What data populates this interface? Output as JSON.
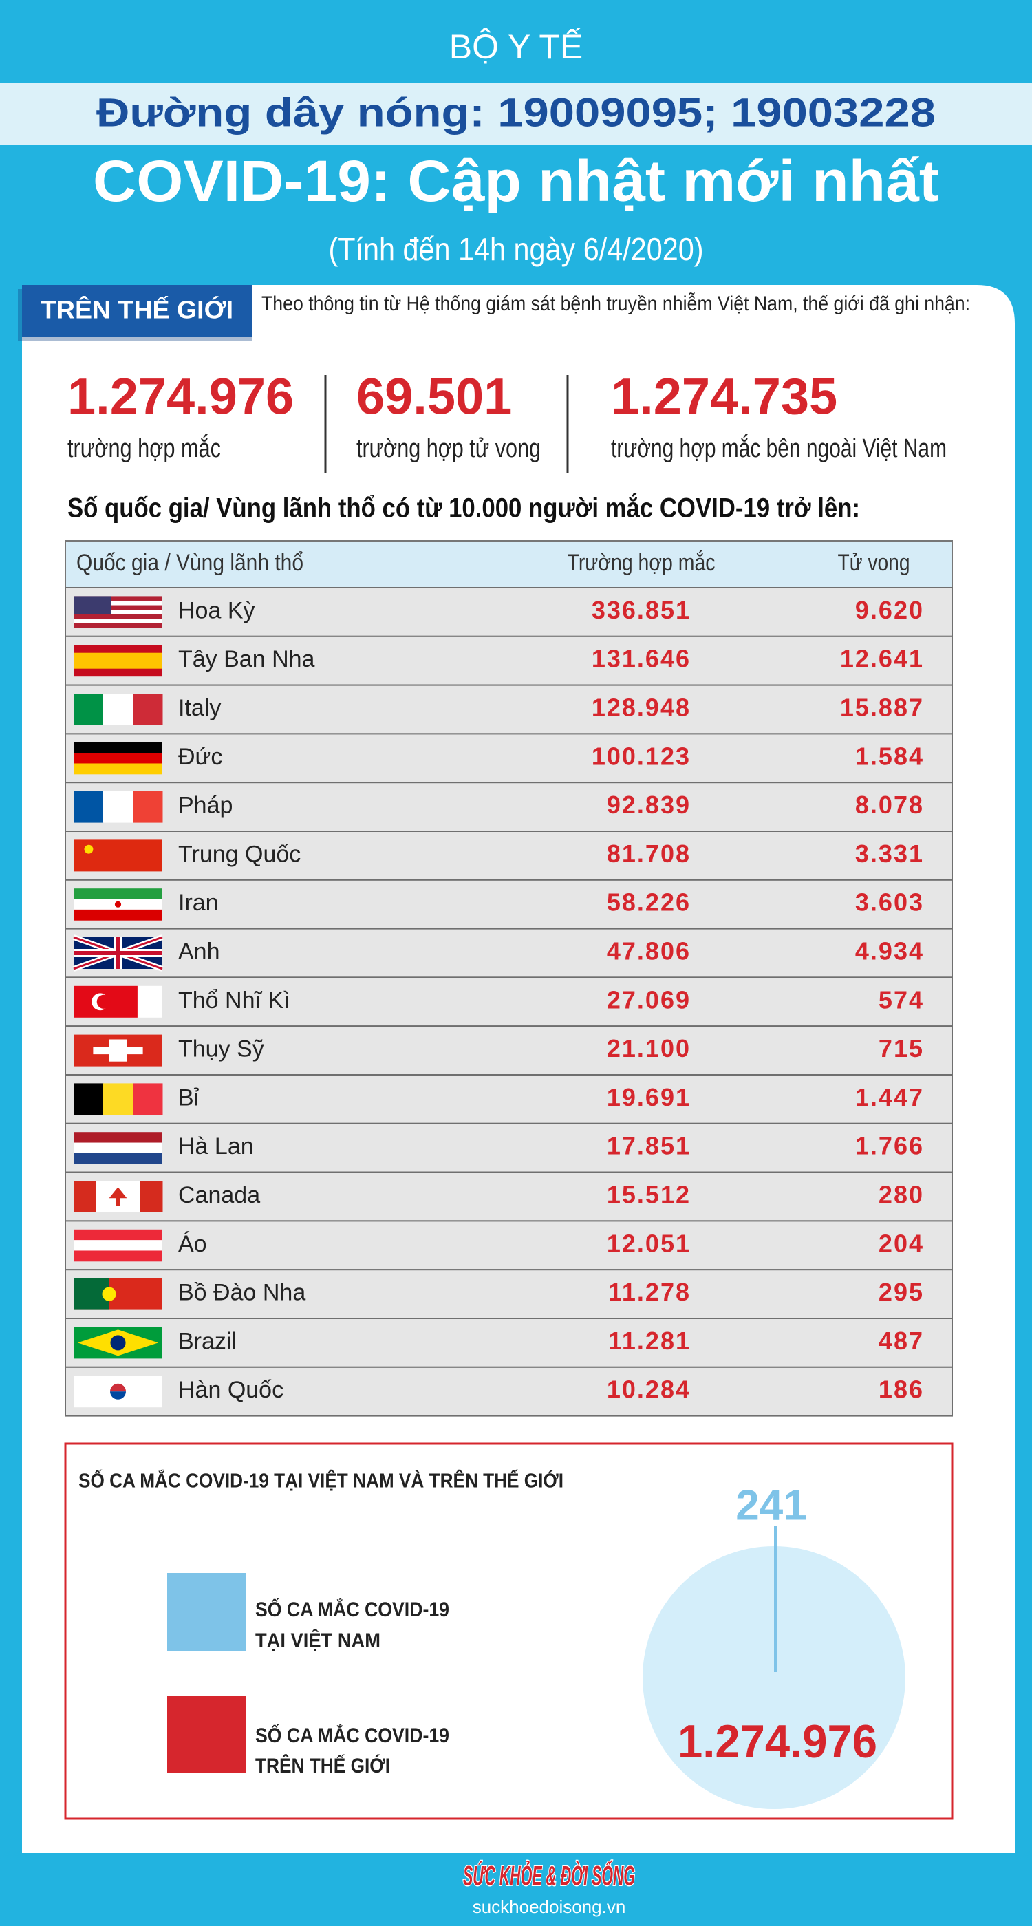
{
  "header": {
    "org": "BỘ Y TẾ",
    "hotline": "Đường dây nóng: 19009095; 19003228",
    "title": "COVID-19: Cập nhật mới nhất",
    "subtitle": "(Tính đến 14h ngày 6/4/2020)"
  },
  "world": {
    "tag": "TRÊN THẾ GIỚI",
    "intro": "Theo thông tin từ Hệ thống giám sát bệnh truyền nhiễm Việt Nam, thế giới đã ghi nhận:",
    "stats": [
      {
        "value": "1.274.976",
        "label": "trường hợp mắc"
      },
      {
        "value": "69.501",
        "label": "trường hợp tử vong"
      },
      {
        "value": "1.274.735",
        "label": "trường hợp  mắc bên ngoài Việt Nam"
      }
    ],
    "heading": "Số quốc gia/ Vùng lãnh thổ có từ 10.000 người  mắc COVID-19 trở lên:"
  },
  "table": {
    "columns": [
      "Quốc gia / Vùng lãnh thổ",
      "Trường hợp mắc",
      "Tử vong"
    ],
    "rows": [
      [
        "Hoa Kỳ",
        "336.851",
        "9.620"
      ],
      [
        "Tây Ban Nha",
        "131.646",
        "12.641"
      ],
      [
        "Italy",
        "128.948",
        "15.887"
      ],
      [
        "Đức",
        "100.123",
        "1.584"
      ],
      [
        "Pháp",
        "92.839",
        "8.078"
      ],
      [
        "Trung Quốc",
        "81.708",
        "3.331"
      ],
      [
        "Iran",
        "58.226",
        "3.603"
      ],
      [
        "Anh",
        "47.806",
        "4.934"
      ],
      [
        "Thổ Nhĩ Kì",
        "27.069",
        "574"
      ],
      [
        "Thụy Sỹ",
        "21.100",
        "715"
      ],
      [
        "Bỉ",
        "19.691",
        "1.447"
      ],
      [
        "Hà Lan",
        "17.851",
        "1.766"
      ],
      [
        "Canada",
        "15.512",
        "280"
      ],
      [
        "Áo",
        "12.051",
        "204"
      ],
      [
        "Bồ Đào Nha",
        "11.278",
        "295"
      ],
      [
        "Brazil",
        "11.281",
        "487"
      ],
      [
        "Hàn Quốc",
        "10.284",
        "186"
      ]
    ]
  },
  "comparison": {
    "title": "SỐ CA MẮC COVID-19 TẠI VIỆT NAM VÀ TRÊN THẾ GIỚI",
    "legend": [
      [
        "SỐ CA MẮC COVID-19",
        "TẠI VIỆT NAM"
      ],
      [
        "SỐ CA MẮC COVID-19",
        "TRÊN THẾ GIỚI"
      ]
    ],
    "values": [
      "241",
      "1.274.976"
    ]
  },
  "footer": {
    "brand": "SỨC KHỎE & ĐỜI SỐNG",
    "site": "suckhoedoisong.vn"
  }
}
